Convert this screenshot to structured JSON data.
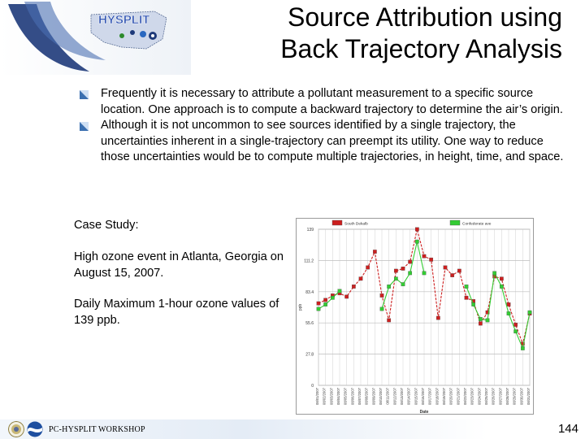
{
  "header": {
    "logo_text": "HYSPLIT",
    "title_line1": "Source Attribution using",
    "title_line2": "Back Trajectory Analysis"
  },
  "bullets": [
    "Frequently it is necessary to attribute a pollutant measurement to a specific source location.  One approach is to compute a backward trajectory to determine the air’s origin.",
    "Although it is not uncommon to see sources identified by a single trajectory, the uncertainties inherent in a single-trajectory can preempt its utility.  One way to reduce those uncertainties would be to compute multiple trajectories, in height, time, and space."
  ],
  "case_study": {
    "heading": "Case Study:",
    "event": "High ozone event in Atlanta, Georgia on August 15, 2007.",
    "detail": "Daily Maximum 1-hour ozone values of 139 ppb."
  },
  "chart_data": {
    "type": "line",
    "legend": [
      "South Dekalb",
      "Confederate ave"
    ],
    "legend_placement": "top",
    "xlabel": "Date",
    "ylabel": "ppb",
    "ylim": [
      0,
      139
    ],
    "yticks": [
      "0",
      "27.8",
      "55.6",
      "83.4",
      "111.2",
      "139"
    ],
    "grid": true,
    "categories": [
      "08/01/2007",
      "08/02/2007",
      "08/03/2007",
      "08/04/2007",
      "08/05/2007",
      "08/06/2007",
      "08/07/2007",
      "08/08/2007",
      "08/09/2007",
      "08/10/2007",
      "08/11/2007",
      "08/12/2007",
      "08/13/2007",
      "08/14/2007",
      "08/15/2007",
      "08/16/2007",
      "08/17/2007",
      "08/18/2007",
      "08/19/2007",
      "08/20/2007",
      "08/21/2007",
      "08/22/2007",
      "08/23/2007",
      "08/24/2007",
      "08/25/2007",
      "08/26/2007",
      "08/27/2007",
      "08/28/2007",
      "08/29/2007",
      "08/30/2007",
      "08/31/2007"
    ],
    "series": [
      {
        "name": "South Dekalb",
        "color": "#cc1f1f",
        "values": [
          73,
          76,
          80,
          82,
          79,
          88,
          95,
          105,
          119,
          80,
          58,
          102,
          104,
          110,
          139,
          115,
          112,
          60,
          105,
          98,
          102,
          78,
          75,
          55,
          65,
          97,
          95,
          72,
          54,
          37,
          64
        ]
      },
      {
        "name": "Confederate ave",
        "color": "#33cc33",
        "values": [
          68,
          72,
          78,
          84,
          null,
          null,
          null,
          null,
          null,
          68,
          88,
          95,
          90,
          100,
          128,
          100,
          null,
          null,
          null,
          null,
          null,
          88,
          72,
          59,
          58,
          100,
          88,
          64,
          48,
          33,
          65
        ]
      }
    ]
  },
  "footer": {
    "label": "PC-HYSPLIT WORKSHOP",
    "page_number": "144"
  },
  "colors": {
    "bullet": "#3a6fb0",
    "series1": "#cc1f1f",
    "series2": "#33cc33"
  }
}
